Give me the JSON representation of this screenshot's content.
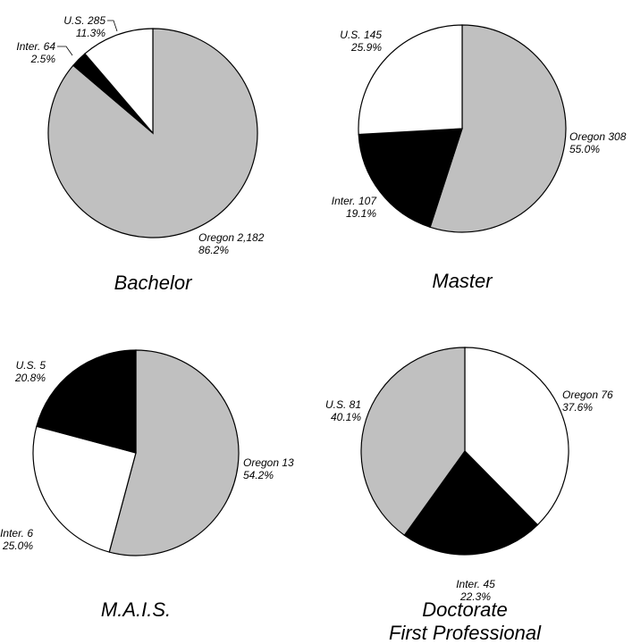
{
  "chart_data": [
    {
      "type": "pie",
      "title": "Bachelor",
      "start_angle_deg": 90,
      "direction": "clockwise",
      "slices": [
        {
          "name": "Oregon",
          "value": 2182,
          "value_text": "2,182",
          "percent": "86.2%",
          "color": "#c0c0c0"
        },
        {
          "name": "Inter.",
          "value": 64,
          "value_text": "64",
          "percent": "2.5%",
          "color": "#000000"
        },
        {
          "name": "U.S.",
          "value": 285,
          "value_text": "285",
          "percent": "11.3%",
          "color": "#ffffff"
        }
      ]
    },
    {
      "type": "pie",
      "title": "Master",
      "start_angle_deg": 90,
      "direction": "clockwise",
      "slices": [
        {
          "name": "Oregon",
          "value": 308,
          "value_text": "308",
          "percent": "55.0%",
          "color": "#c0c0c0"
        },
        {
          "name": "Inter.",
          "value": 107,
          "value_text": "107",
          "percent": "19.1%",
          "color": "#000000"
        },
        {
          "name": "U.S.",
          "value": 145,
          "value_text": "145",
          "percent": "25.9%",
          "color": "#ffffff"
        }
      ]
    },
    {
      "type": "pie",
      "title": "M.A.I.S.",
      "start_angle_deg": 90,
      "direction": "clockwise",
      "slices": [
        {
          "name": "Oregon",
          "value": 13,
          "value_text": "13",
          "percent": "54.2%",
          "color": "#c0c0c0"
        },
        {
          "name": "Inter.",
          "value": 6,
          "value_text": "6",
          "percent": "25.0%",
          "color": "#ffffff"
        },
        {
          "name": "U.S.",
          "value": 5,
          "value_text": "5",
          "percent": "20.8%",
          "color": "#000000"
        }
      ]
    },
    {
      "type": "pie",
      "title": "Doctorate",
      "subtitle": "First Professional",
      "start_angle_deg": 90,
      "direction": "clockwise",
      "slices": [
        {
          "name": "Oregon",
          "value": 76,
          "value_text": "76",
          "percent": "37.6%",
          "color": "#ffffff"
        },
        {
          "name": "Inter.",
          "value": 45,
          "value_text": "45",
          "percent": "22.3%",
          "color": "#000000"
        },
        {
          "name": "U.S.",
          "value": 81,
          "value_text": "81",
          "percent": "40.1%",
          "color": "#c0c0c0"
        }
      ]
    }
  ]
}
